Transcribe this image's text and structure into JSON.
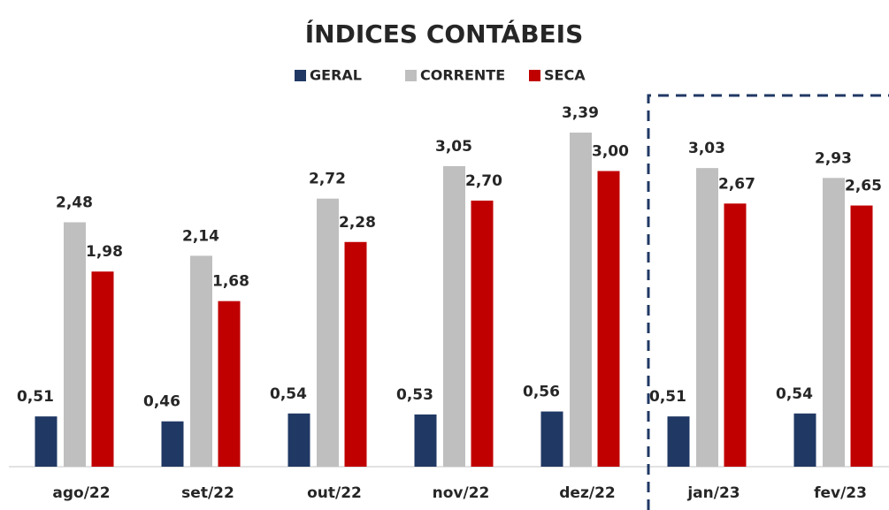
{
  "chart_data": {
    "type": "bar",
    "title": "ÍNDICES CONTÁBEIS",
    "categories": [
      "ago/22",
      "set/22",
      "out/22",
      "nov/22",
      "dez/22",
      "jan/23",
      "fev/23"
    ],
    "series": [
      {
        "name": "GERAL",
        "color": "#203864",
        "values": [
          0.51,
          0.46,
          0.54,
          0.53,
          0.56,
          0.51,
          0.54
        ],
        "value_labels": [
          "0,51",
          "0,46",
          "0,54",
          "0,53",
          "0,56",
          "0,51",
          "0,54"
        ]
      },
      {
        "name": "CORRENTE",
        "color": "#bfbfbf",
        "values": [
          2.48,
          2.14,
          2.72,
          3.05,
          3.39,
          3.03,
          2.93
        ],
        "value_labels": [
          "2,48",
          "2,14",
          "2,72",
          "3,05",
          "3,39",
          "3,03",
          "2,93"
        ]
      },
      {
        "name": "SECA",
        "color": "#c00000",
        "values": [
          1.98,
          1.68,
          2.28,
          2.7,
          3.0,
          2.67,
          2.65
        ],
        "value_labels": [
          "1,98",
          "1,68",
          "2,28",
          "2,70",
          "3,00",
          "2,67",
          "2,65"
        ]
      }
    ]
  }
}
